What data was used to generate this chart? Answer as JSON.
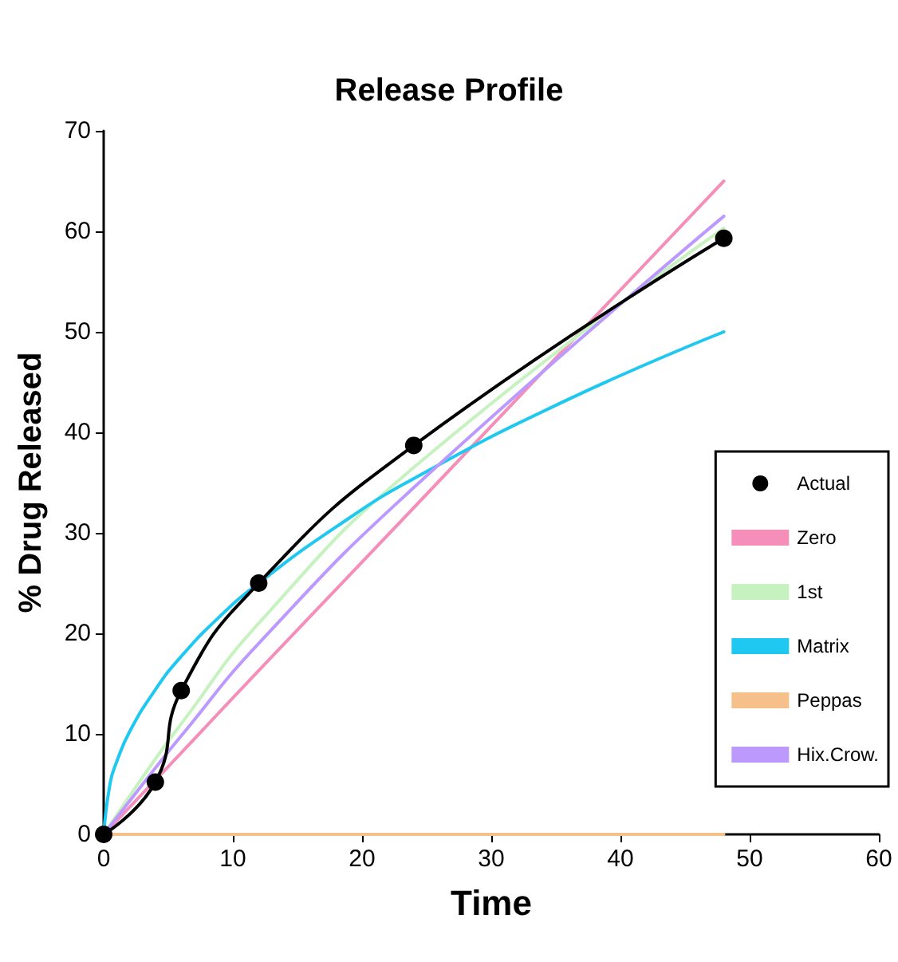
{
  "chart_data": {
    "type": "line",
    "title": "Release Profile",
    "xlabel": "Time",
    "ylabel": "% Drug Released",
    "xlim": [
      0,
      60
    ],
    "xticks": [
      0,
      10,
      20,
      30,
      40,
      50,
      60
    ],
    "ylim": [
      0,
      70
    ],
    "yticks": [
      0,
      10,
      20,
      30,
      40,
      50,
      60,
      70
    ],
    "grid": false,
    "legend": "right",
    "line_style": "solid",
    "series": [
      {
        "name": "Actual",
        "color": "#000000",
        "marker": "circle",
        "x": [
          0,
          4,
          6,
          12,
          24,
          48
        ],
        "values": [
          0,
          5.2,
          14.3,
          25,
          38.7,
          59.3
        ]
      },
      {
        "name": "Zero",
        "color": "#f58fba",
        "marker": "none",
        "x": [
          0,
          4,
          6,
          12,
          24,
          48
        ],
        "values": [
          0,
          5.4,
          8.1,
          16.3,
          32.5,
          65
        ]
      },
      {
        "name": "1st",
        "color": "#c6f2bf",
        "marker": "none",
        "x": [
          0,
          4,
          6,
          12,
          24,
          48
        ],
        "values": [
          0,
          7.5,
          11,
          21,
          36.5,
          60.3
        ]
      },
      {
        "name": "Matrix",
        "color": "#1ec8f0",
        "marker": "none",
        "x": [
          0,
          0.5,
          1,
          2,
          4,
          6,
          9,
          12,
          18,
          24,
          36,
          48
        ],
        "values": [
          0,
          5.1,
          7.2,
          10.2,
          14.4,
          17.7,
          21.7,
          25,
          30.6,
          35.4,
          43.3,
          50
        ]
      },
      {
        "name": "Peppas",
        "color": "#f5c08a",
        "marker": "none",
        "x": [
          0,
          48
        ],
        "values": [
          0,
          0
        ]
      },
      {
        "name": "Hix.Crow.",
        "color": "#bb99ff",
        "marker": "none",
        "x": [
          0,
          4,
          6,
          12,
          24,
          48
        ],
        "values": [
          0,
          6.6,
          9.8,
          19,
          34.5,
          61.5
        ]
      }
    ]
  }
}
